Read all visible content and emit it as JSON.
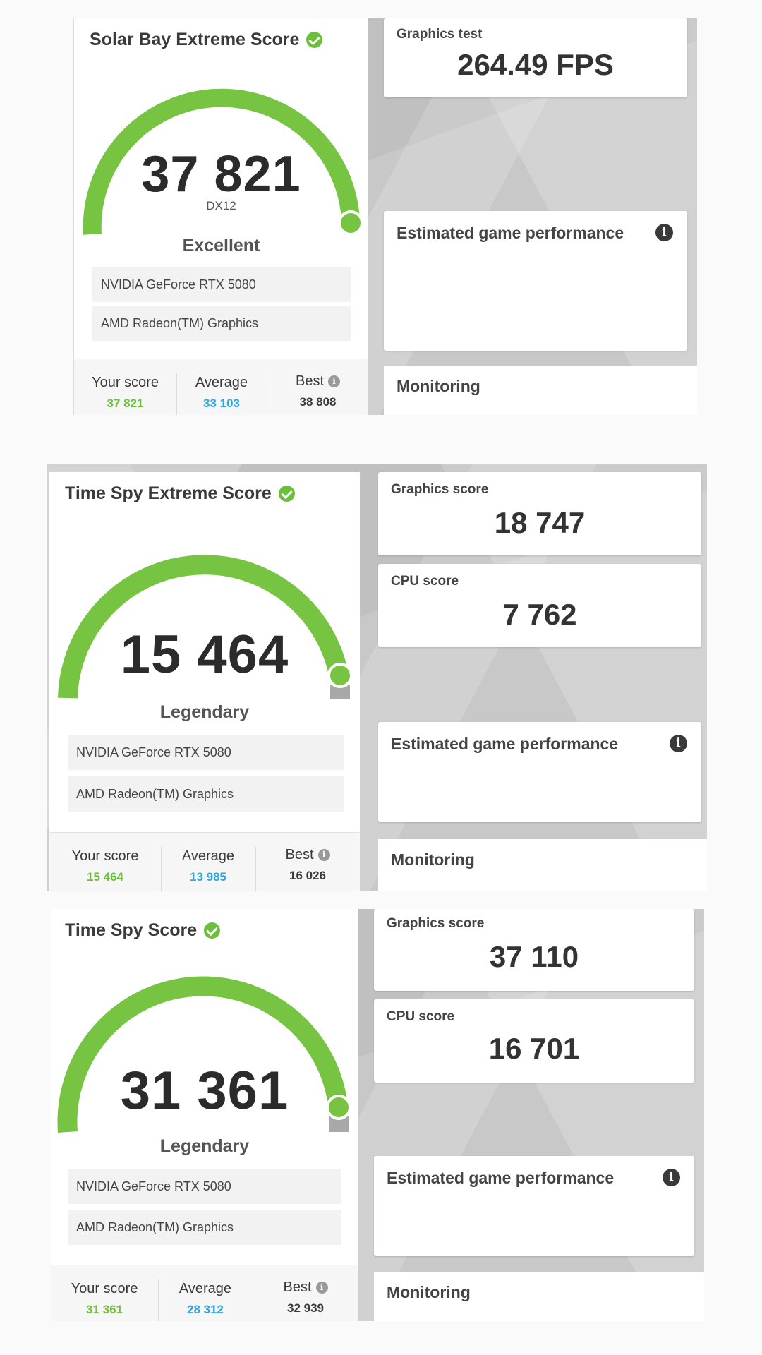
{
  "panels": [
    {
      "title": "Solar Bay Extreme Score",
      "score": "37 821",
      "api": "DX12",
      "rating": "Excellent",
      "gpus": [
        "NVIDIA GeForce RTX 5080",
        "AMD Radeon(TM) Graphics"
      ],
      "stats": {
        "your_label": "Your score",
        "your_value": "37 821",
        "avg_label": "Average",
        "avg_value": "33 103",
        "best_label": "Best",
        "best_value": "38 808"
      },
      "cards": [
        {
          "title": "Graphics test",
          "value": "264.49 FPS"
        }
      ],
      "estimated": "Estimated game performance",
      "monitoring": "Monitoring"
    },
    {
      "title": "Time Spy Extreme Score",
      "score": "15 464",
      "api": "",
      "rating": "Legendary",
      "gpus": [
        "NVIDIA GeForce RTX 5080",
        "AMD Radeon(TM) Graphics"
      ],
      "stats": {
        "your_label": "Your score",
        "your_value": "15 464",
        "avg_label": "Average",
        "avg_value": "13 985",
        "best_label": "Best",
        "best_value": "16 026"
      },
      "cards": [
        {
          "title": "Graphics score",
          "value": "18 747"
        },
        {
          "title": "CPU score",
          "value": "7 762"
        }
      ],
      "estimated": "Estimated game performance",
      "monitoring": "Monitoring"
    },
    {
      "title": "Time Spy Score",
      "score": "31 361",
      "api": "",
      "rating": "Legendary",
      "gpus": [
        "NVIDIA GeForce RTX 5080",
        "AMD Radeon(TM) Graphics"
      ],
      "stats": {
        "your_label": "Your score",
        "your_value": "31 361",
        "avg_label": "Average",
        "avg_value": "28 312",
        "best_label": "Best",
        "best_value": "32 939"
      },
      "cards": [
        {
          "title": "Graphics score",
          "value": "37 110"
        },
        {
          "title": "CPU score",
          "value": "16 701"
        }
      ],
      "estimated": "Estimated game performance",
      "monitoring": "Monitoring"
    }
  ],
  "colors": {
    "gauge_green": "#76c442",
    "your_score": "#6cbf3a",
    "average": "#2fa6de",
    "track_gray": "#a8a8a8"
  },
  "icons": {
    "verified": "check-circle-icon",
    "info": "info-icon"
  }
}
